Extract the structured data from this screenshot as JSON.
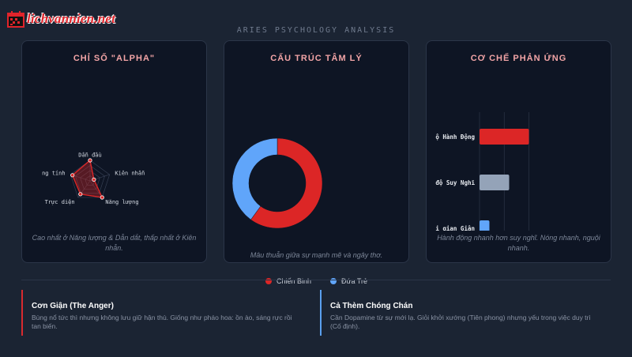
{
  "logo": {
    "text": "lichvannien.net"
  },
  "page_title": "ARIES PSYCHOLOGY ANALYSIS",
  "colors": {
    "red": "#dc2626",
    "blue": "#60a5fa",
    "gray": "#94a3b8"
  },
  "cards": [
    {
      "title": "CHỈ SỐ \"ALPHA\"",
      "caption": "Cao nhất ở Năng lượng & Dẫn dắt, thấp nhất ở Kiên nhẫn."
    },
    {
      "title": "CẤU TRÚC TÂM LÝ",
      "caption": "Mâu thuẫn giữa sự mạnh mẽ và ngây thơ."
    },
    {
      "title": "CƠ CHẾ PHẢN ỨNG",
      "caption": "Hành động nhanh hơn suy nghĩ. Nóng nhanh, nguội nhanh."
    }
  ],
  "chart_data": [
    {
      "type": "radar",
      "title": "CHỈ SỐ \"ALPHA\"",
      "categories": [
        "Dẫn đầu",
        "Kiên nhẫn",
        "Năng lượng",
        "Trực diện",
        "ng tính"
      ],
      "values": [
        10,
        2,
        10,
        8,
        9
      ],
      "range": [
        0,
        10
      ]
    },
    {
      "type": "pie",
      "title": "CẤU TRÚC TÂM LÝ",
      "labels": [
        "Chiến Binh",
        "Đứa Trẻ"
      ],
      "values": [
        60,
        40
      ]
    },
    {
      "type": "bar",
      "orientation": "horizontal",
      "title": "CƠ CHẾ PHẢN ỨNG",
      "categories": [
        "ộ Hành Động",
        "độ Suy Nghĩ",
        "i gian Giận"
      ],
      "values": [
        10,
        6,
        2
      ],
      "xticks": [
        "0",
        "5",
        "10"
      ],
      "xlim": [
        0,
        12
      ]
    }
  ],
  "notes": [
    {
      "title": "Cơn Giận (The Anger)",
      "text": "Bùng nổ tức thì nhưng không lưu giữ hận thù. Giống như pháo hoa: ồn ào, sáng rực rồi tan biến."
    },
    {
      "title": "Cả Thèm Chóng Chán",
      "text": "Cần Dopamine từ sự mới lạ. Giỏi khởi xướng (Tiên phong) nhưng yếu trong việc duy trì (Cố định)."
    }
  ]
}
